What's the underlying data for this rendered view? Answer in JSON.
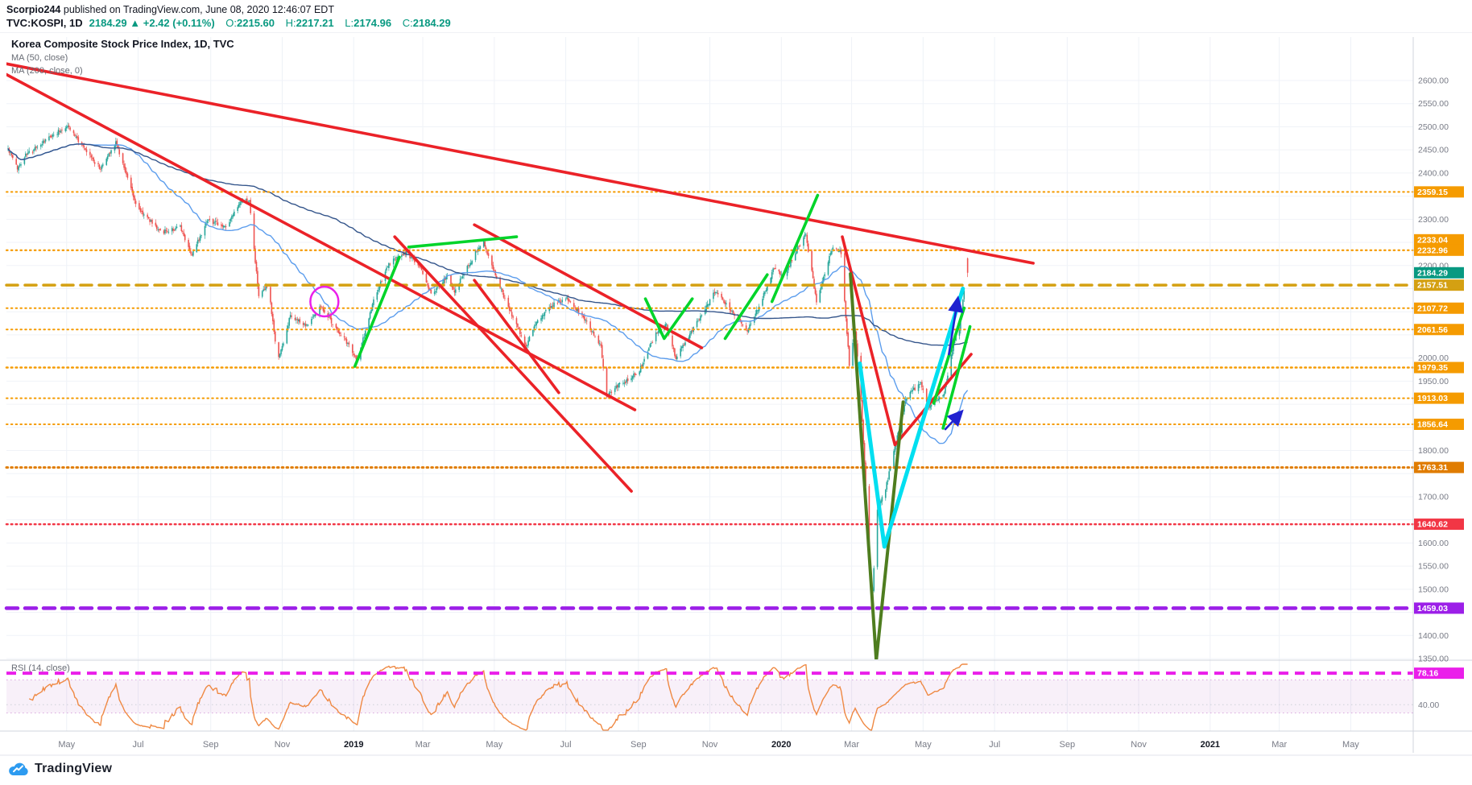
{
  "header": {
    "author": "Scorpio244",
    "published": " published on TradingView.com, June 08, 2020 12:46:07 EDT",
    "symbol": "TVC:KOSPI, 1D",
    "last_text": "2184.29",
    "arrow": "▲",
    "change": "+2.42 (+0.11%)",
    "ohlc": [
      {
        "label": "O:",
        "value": "2215.60"
      },
      {
        "label": "H:",
        "value": "2217.21"
      },
      {
        "label": "L:",
        "value": "2174.96"
      },
      {
        "label": "C:",
        "value": "2184.29"
      }
    ]
  },
  "footer": {
    "brand": "TradingView"
  },
  "chart_data": {
    "type": "candlestick",
    "title": "Korea Composite Stock Price Index, 1D, TVC",
    "symbol": "TVC:KOSPI",
    "interval": "1D",
    "start_date": "2018-03-12",
    "last": {
      "open": 2215.6,
      "high": 2217.21,
      "low": 2174.96,
      "close": 2184.29,
      "change": "+2.42",
      "change_pct": "+0.11%"
    },
    "y_axis": {
      "min": 1350,
      "max": 2600,
      "step": 50
    },
    "x_labels": [
      {
        "text": "May",
        "day": 50,
        "year": false
      },
      {
        "text": "Jul",
        "day": 111,
        "year": false
      },
      {
        "text": "Sep",
        "day": 173,
        "year": false
      },
      {
        "text": "Nov",
        "day": 234,
        "year": false
      },
      {
        "text": "2019",
        "day": 295,
        "year": true
      },
      {
        "text": "Mar",
        "day": 354,
        "year": false
      },
      {
        "text": "May",
        "day": 415,
        "year": false
      },
      {
        "text": "Jul",
        "day": 476,
        "year": false
      },
      {
        "text": "Sep",
        "day": 538,
        "year": false
      },
      {
        "text": "Nov",
        "day": 599,
        "year": false
      },
      {
        "text": "2020",
        "day": 660,
        "year": true
      },
      {
        "text": "Mar",
        "day": 720,
        "year": false
      },
      {
        "text": "May",
        "day": 781,
        "year": false
      },
      {
        "text": "Jul",
        "day": 842,
        "year": false
      },
      {
        "text": "Sep",
        "day": 904,
        "year": false
      },
      {
        "text": "Nov",
        "day": 965,
        "year": false
      },
      {
        "text": "2021",
        "day": 1026,
        "year": true
      },
      {
        "text": "Mar",
        "day": 1085,
        "year": false
      },
      {
        "text": "May",
        "day": 1146,
        "year": false
      }
    ],
    "close_anchors": [
      [
        0,
        2452
      ],
      [
        8,
        2410
      ],
      [
        15,
        2440
      ],
      [
        20,
        2446
      ],
      [
        37,
        2480
      ],
      [
        51,
        2503
      ],
      [
        66,
        2448
      ],
      [
        79,
        2409
      ],
      [
        92,
        2468
      ],
      [
        110,
        2326
      ],
      [
        131,
        2272
      ],
      [
        147,
        2282
      ],
      [
        157,
        2222
      ],
      [
        170,
        2300
      ],
      [
        186,
        2282
      ],
      [
        200,
        2342
      ],
      [
        206,
        2338
      ],
      [
        214,
        2132
      ],
      [
        222,
        2156
      ],
      [
        230,
        1996
      ],
      [
        234,
        2024
      ],
      [
        241,
        2092
      ],
      [
        254,
        2069
      ],
      [
        267,
        2114
      ],
      [
        281,
        2060
      ],
      [
        291,
        2028
      ],
      [
        298,
        1994
      ],
      [
        312,
        2124
      ],
      [
        325,
        2204
      ],
      [
        340,
        2228
      ],
      [
        352,
        2196
      ],
      [
        361,
        2137
      ],
      [
        375,
        2176
      ],
      [
        381,
        2145
      ],
      [
        400,
        2232
      ],
      [
        406,
        2248
      ],
      [
        423,
        2134
      ],
      [
        442,
        2023
      ],
      [
        449,
        2072
      ],
      [
        461,
        2109
      ],
      [
        476,
        2130
      ],
      [
        493,
        2082
      ],
      [
        506,
        2025
      ],
      [
        511,
        1917
      ],
      [
        518,
        1938
      ],
      [
        526,
        1948
      ],
      [
        538,
        1969
      ],
      [
        552,
        2049
      ],
      [
        562,
        2072
      ],
      [
        570,
        1999
      ],
      [
        590,
        2085
      ],
      [
        604,
        2145
      ],
      [
        622,
        2088
      ],
      [
        631,
        2060
      ],
      [
        640,
        2105
      ],
      [
        654,
        2196
      ],
      [
        662,
        2176
      ],
      [
        674,
        2238
      ],
      [
        681,
        2267
      ],
      [
        690,
        2119
      ],
      [
        704,
        2243
      ],
      [
        711,
        2229
      ],
      [
        718,
        1987
      ],
      [
        723,
        2059
      ],
      [
        727,
        1954
      ],
      [
        731,
        1771
      ],
      [
        737,
        1458
      ],
      [
        742,
        1670
      ],
      [
        749,
        1717
      ],
      [
        757,
        1807
      ],
      [
        766,
        1914
      ],
      [
        779,
        1947
      ],
      [
        785,
        1895
      ],
      [
        799,
        1925
      ],
      [
        807,
        2030
      ],
      [
        812,
        2065
      ],
      [
        816,
        2147
      ],
      [
        818,
        2181
      ],
      [
        819,
        2184.29
      ]
    ],
    "candle_colors": {
      "up": "#26a69a",
      "down": "#ef5350"
    },
    "ma": [
      {
        "name": "MA (50, close)",
        "period": 50,
        "color": "#5c9ded"
      },
      {
        "name": "MA (200, close, 0)",
        "period": 200,
        "color": "#34558b"
      }
    ],
    "levels": [
      {
        "value": 2359.15,
        "color": "#f59b00",
        "style": "dotted",
        "width": 2
      },
      {
        "value": 2232.96,
        "color": "#f59b00",
        "style": "dotted",
        "width": 2
      },
      {
        "value": 2233.04,
        "color": "#f59b00",
        "style": "dotted",
        "width": 2
      },
      {
        "value": 2157.51,
        "color": "#d4a012",
        "style": "dashed",
        "width": 3.5
      },
      {
        "value": 2107.72,
        "color": "#f59b00",
        "style": "dotted",
        "width": 2
      },
      {
        "value": 2061.56,
        "color": "#f59b00",
        "style": "dotted",
        "width": 2
      },
      {
        "value": 1979.35,
        "color": "#f59b00",
        "style": "dotted",
        "width": 2.5
      },
      {
        "value": 1913.03,
        "color": "#f59b00",
        "style": "dotted",
        "width": 2
      },
      {
        "value": 1856.64,
        "color": "#f59b00",
        "style": "dotted",
        "width": 2
      },
      {
        "value": 1763.31,
        "color": "#e07c00",
        "style": "dotted",
        "width": 3
      },
      {
        "value": 1640.62,
        "color": "#f23645",
        "style": "dotted",
        "width": 2.5
      },
      {
        "value": 1459.03,
        "color": "#9c1fe8",
        "style": "dashed",
        "width": 4.5
      }
    ],
    "drawings": {
      "colors": {
        "red": "#eb2228",
        "green": "#00d42a",
        "olive": "#4e7d1f",
        "cyan": "#00dff0",
        "blue": "#2022d0"
      },
      "red_lines": [
        [
          [
            -5,
            2638
          ],
          [
            875,
            2205
          ]
        ],
        [
          [
            -5,
            2618
          ],
          [
            535,
            1888
          ]
        ],
        [
          [
            330,
            2262
          ],
          [
            532,
            1712
          ]
        ],
        [
          [
            398,
            2288
          ],
          [
            592,
            2022
          ]
        ],
        [
          [
            398,
            2168
          ],
          [
            470,
            1925
          ]
        ],
        [
          [
            712,
            2262
          ],
          [
            757,
            1812
          ],
          [
            822,
            2008
          ]
        ]
      ],
      "green_lines": [
        [
          [
            296,
            1982
          ],
          [
            334,
            2218
          ]
        ],
        [
          [
            342,
            2240
          ],
          [
            434,
            2262
          ]
        ],
        [
          [
            544,
            2128
          ],
          [
            560,
            2042
          ],
          [
            584,
            2128
          ]
        ],
        [
          [
            612,
            2042
          ],
          [
            648,
            2180
          ]
        ],
        [
          [
            652,
            2122
          ],
          [
            691,
            2352
          ]
        ],
        [
          [
            790,
            1902
          ],
          [
            816,
            2108
          ]
        ],
        [
          [
            798,
            1848
          ],
          [
            821,
            2068
          ]
        ]
      ],
      "olive_lines": [
        [
          [
            719,
            2182
          ],
          [
            741,
            1346
          ],
          [
            764,
            1905
          ]
        ]
      ],
      "cyan_lines": [
        [
          [
            727,
            1988
          ],
          [
            748,
            1592
          ],
          [
            815,
            2150
          ]
        ]
      ],
      "blue_arrows": [
        [
          [
            803,
            2008
          ],
          [
            810,
            2118
          ]
        ],
        [
          [
            800,
            1846
          ],
          [
            811,
            1876
          ]
        ]
      ],
      "ellipse": {
        "day": 270,
        "price": 2122,
        "rx_days": 12,
        "ry_points": 32,
        "color": "#ea1fea"
      }
    },
    "rsi": {
      "label": "RSI (14, close)",
      "period": 14,
      "line_color": "#ef8943",
      "level": {
        "value": 78.16,
        "color": "#ea1fea"
      },
      "band": [
        30,
        70
      ],
      "gridline": {
        "value": 40,
        "label": "40.00"
      },
      "range": [
        10,
        90
      ]
    }
  }
}
